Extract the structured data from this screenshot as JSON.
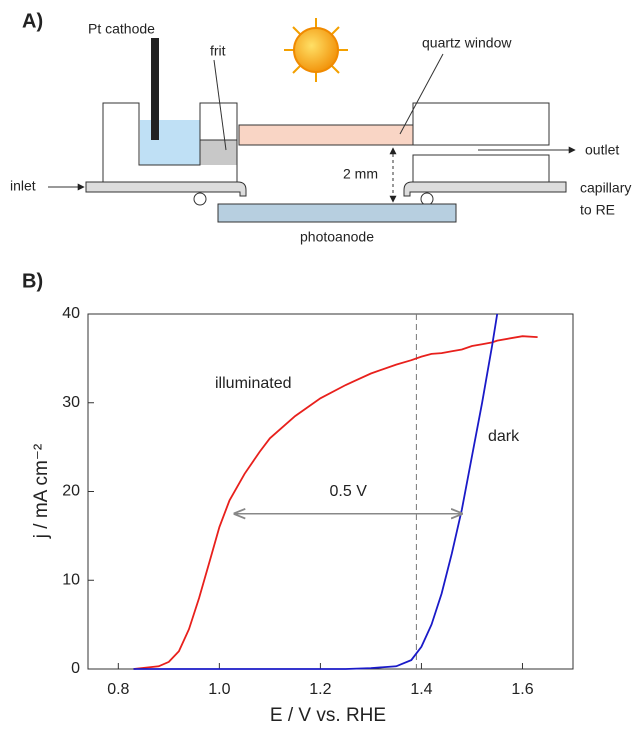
{
  "panel_a": {
    "label": "A)",
    "pt_cathode": "Pt cathode",
    "frit": "frit",
    "quartz_window": "quartz window",
    "outlet": "outlet",
    "inlet": "inlet",
    "gap": "2 mm",
    "capillary": [
      "capillary",
      "to RE"
    ],
    "photoanode": "photoanode"
  },
  "chart_data": {
    "type": "line",
    "panel_label": "B)",
    "xlabel": "E / V  vs. RHE",
    "ylabel": "j / mA cm⁻²",
    "x": [
      0.83,
      0.88,
      0.9,
      0.92,
      0.94,
      0.96,
      0.98,
      1.0,
      1.02,
      1.05,
      1.08,
      1.1,
      1.15,
      1.2,
      1.25,
      1.3,
      1.35,
      1.38,
      1.4,
      1.42,
      1.44,
      1.46,
      1.48,
      1.5,
      1.52,
      1.54,
      1.55,
      1.6,
      1.63
    ],
    "series": [
      {
        "name": "illuminated",
        "color": "#e8201c",
        "values": [
          0,
          0.3,
          0.8,
          2,
          4.5,
          8,
          12,
          16,
          19,
          22,
          24.5,
          26,
          28.5,
          30.5,
          32,
          33.3,
          34.3,
          34.8,
          35.2,
          35.5,
          35.6,
          35.8,
          36,
          36.4,
          36.6,
          36.8,
          37,
          37.5,
          37.4
        ]
      },
      {
        "name": "dark",
        "color": "#1a1ac8",
        "values": [
          0,
          0,
          0,
          0,
          0,
          0,
          0,
          0,
          0,
          0,
          0,
          0,
          0,
          0,
          0,
          0.1,
          0.3,
          1,
          2.5,
          5,
          8.5,
          13,
          18,
          24,
          30,
          36.5,
          40,
          null,
          null
        ]
      }
    ],
    "xlim": [
      0.74,
      1.7
    ],
    "ylim": [
      0,
      40
    ],
    "xticks": [
      0.8,
      {
        "value": 1,
        "label": "1.0"
      },
      1.2,
      1.4,
      1.6
    ],
    "yticks": [
      0,
      10,
      20,
      30,
      40
    ],
    "vline": 1.39,
    "arrow": {
      "x": [
        1.03,
        1.48
      ],
      "y": 17.5,
      "label": "0.5 V"
    }
  }
}
